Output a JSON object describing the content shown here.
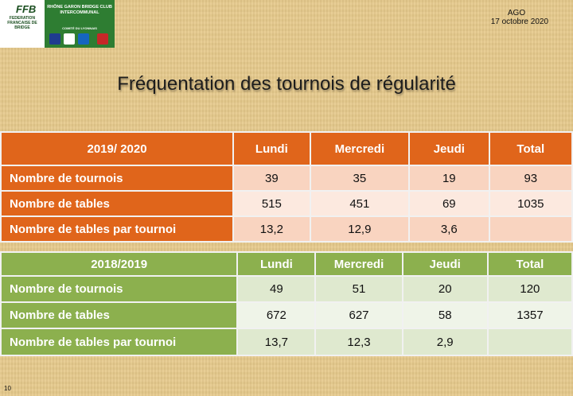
{
  "logo": {
    "ffb": "FFB",
    "ffb_sub": "FEDERATION FRANCAISE DE BRIDGE",
    "club": "RHÔNE GARON BRIDGE CLUB INTERCOMMUNAL",
    "club_sub": "COMITÉ DU LYONNAIS"
  },
  "header": {
    "event": "AGO",
    "date": "17 octobre 2020"
  },
  "title": "Fréquentation des tournois de régularité",
  "tables": [
    {
      "season": "2019/ 2020",
      "columns": [
        "Lundi",
        "Mercredi",
        "Jeudi",
        "Total"
      ],
      "rows": [
        {
          "label": "Nombre de tournois",
          "values": [
            "39",
            "35",
            "19",
            "93"
          ]
        },
        {
          "label": "Nombre de tables",
          "values": [
            "515",
            "451",
            "69",
            "1035"
          ]
        },
        {
          "label": "Nombre de tables par tournoi",
          "values": [
            "13,2",
            "12,9",
            "3,6",
            ""
          ]
        }
      ]
    },
    {
      "season": "2018/2019",
      "columns": [
        "Lundi",
        "Mercredi",
        "Jeudi",
        "Total"
      ],
      "rows": [
        {
          "label": "Nombre de tournois",
          "values": [
            "49",
            "51",
            "20",
            "120"
          ]
        },
        {
          "label": "Nombre de tables",
          "values": [
            "672",
            "627",
            "58",
            "1357"
          ]
        },
        {
          "label": "Nombre de tables par tournoi",
          "values": [
            "13,7",
            "12,3",
            "2,9",
            ""
          ]
        }
      ]
    }
  ],
  "page_number": "10",
  "colors": {
    "orange": "#e0651b",
    "green": "#8cb04e"
  }
}
